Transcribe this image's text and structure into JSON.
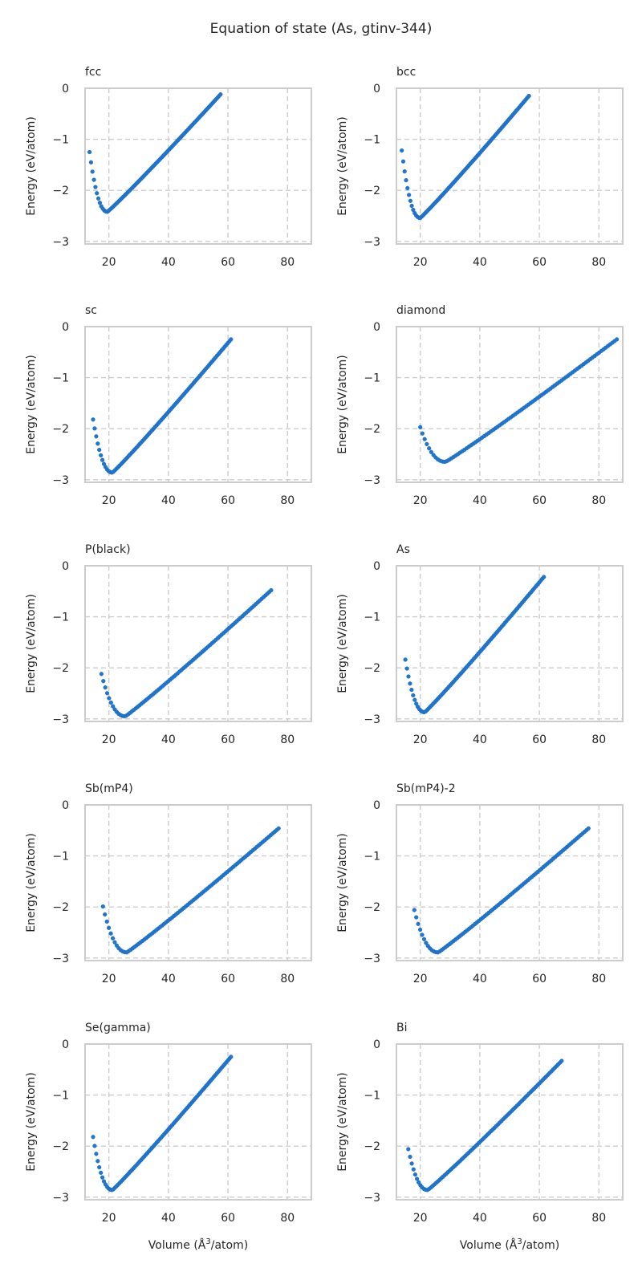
{
  "figure": {
    "title": "Equation of state (As, gtinv-344)"
  },
  "chart_data": {
    "type": "scatter",
    "suptitle": "Equation of state (As, gtinv-344)",
    "xlabel": "Volume (Å3/atom)",
    "xlabel_parts": [
      "Volume (",
      "Å",
      "3",
      "/atom)"
    ],
    "ylabel": "Energy (eV/atom)",
    "xlim": [
      12,
      88
    ],
    "ylim": [
      -3.05,
      0
    ],
    "xticks": [
      20,
      40,
      60,
      80
    ],
    "yticks": [
      0,
      -1,
      -2,
      -3
    ],
    "grid": true,
    "marker_color": "#1f77d4",
    "panels": [
      {
        "title": "fcc",
        "vmin": 13.5,
        "emin": -2.42,
        "v0": 19.5,
        "vmax": 57.5,
        "emax": -0.12,
        "e_left": -1.25
      },
      {
        "title": "bcc",
        "vmin": 13.8,
        "emin": -2.54,
        "v0": 20.0,
        "vmax": 56.5,
        "emax": -0.15,
        "e_left": -1.22
      },
      {
        "title": "sc",
        "vmin": 14.7,
        "emin": -2.86,
        "v0": 21.2,
        "vmax": 61.0,
        "emax": -0.25,
        "e_left": -1.82
      },
      {
        "title": "diamond",
        "vmin": 20.0,
        "emin": -2.65,
        "v0": 28.5,
        "vmax": 86.0,
        "emax": -0.25,
        "e_left": -1.97
      },
      {
        "title": "P(black)",
        "vmin": 17.5,
        "emin": -2.95,
        "v0": 25.5,
        "vmax": 74.5,
        "emax": -0.48,
        "e_left": -2.12
      },
      {
        "title": "As",
        "vmin": 15.0,
        "emin": -2.87,
        "v0": 21.5,
        "vmax": 61.5,
        "emax": -0.22,
        "e_left": -1.84
      },
      {
        "title": "Sb(mP4)",
        "vmin": 18.0,
        "emin": -2.89,
        "v0": 26.0,
        "vmax": 77.0,
        "emax": -0.46,
        "e_left": -1.99
      },
      {
        "title": "Sb(mP4)-2",
        "vmin": 18.0,
        "emin": -2.89,
        "v0": 26.0,
        "vmax": 76.5,
        "emax": -0.46,
        "e_left": -2.06
      },
      {
        "title": "Se(gamma)",
        "vmin": 14.7,
        "emin": -2.86,
        "v0": 21.2,
        "vmax": 61.0,
        "emax": -0.25,
        "e_left": -1.82
      },
      {
        "title": "Bi",
        "vmin": 16.0,
        "emin": -2.86,
        "v0": 22.5,
        "vmax": 67.5,
        "emax": -0.33,
        "e_left": -2.06
      }
    ]
  }
}
